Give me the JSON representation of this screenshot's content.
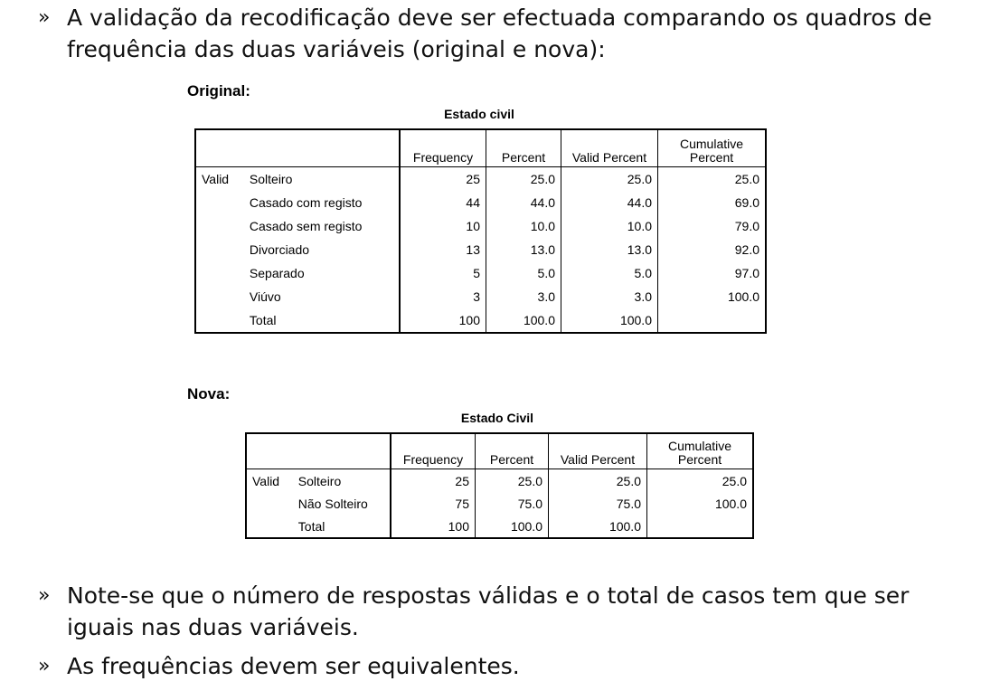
{
  "bullets": [
    {
      "mark": "»",
      "lines": [
        "A validação da recodificação deve ser efectuada comparando os quadros de",
        "frequência das duas variáveis (original e nova):"
      ]
    },
    {
      "mark": "»",
      "lines": [
        "Note-se que o número de respostas válidas e o total de casos tem que ser",
        "iguais nas duas variáveis."
      ]
    },
    {
      "mark": "»",
      "lines": [
        "As frequências devem ser equivalentes."
      ]
    }
  ],
  "original": {
    "label": "Original:",
    "title": "Estado civil",
    "headers": [
      "Frequency",
      "Percent",
      "Valid Percent",
      "Cumulative Percent"
    ],
    "header_cumulative_lines": [
      "Cumulative",
      "Percent"
    ],
    "group": "Valid",
    "rows": [
      {
        "label": "Solteiro",
        "frequency": "25",
        "percent": "25.0",
        "valid_percent": "25.0",
        "cumulative": "25.0"
      },
      {
        "label": "Casado com registo",
        "frequency": "44",
        "percent": "44.0",
        "valid_percent": "44.0",
        "cumulative": "69.0"
      },
      {
        "label": "Casado sem registo",
        "frequency": "10",
        "percent": "10.0",
        "valid_percent": "10.0",
        "cumulative": "79.0"
      },
      {
        "label": "Divorciado",
        "frequency": "13",
        "percent": "13.0",
        "valid_percent": "13.0",
        "cumulative": "92.0"
      },
      {
        "label": "Separado",
        "frequency": "5",
        "percent": "5.0",
        "valid_percent": "5.0",
        "cumulative": "97.0"
      },
      {
        "label": "Viúvo",
        "frequency": "3",
        "percent": "3.0",
        "valid_percent": "3.0",
        "cumulative": "100.0"
      },
      {
        "label": "Total",
        "frequency": "100",
        "percent": "100.0",
        "valid_percent": "100.0",
        "cumulative": ""
      }
    ]
  },
  "nova": {
    "label": "Nova:",
    "title": "Estado Civil",
    "headers": [
      "Frequency",
      "Percent",
      "Valid Percent",
      "Cumulative Percent"
    ],
    "header_cumulative_lines": [
      "Cumulative",
      "Percent"
    ],
    "group": "Valid",
    "rows": [
      {
        "label": "Solteiro",
        "frequency": "25",
        "percent": "25.0",
        "valid_percent": "25.0",
        "cumulative": "25.0"
      },
      {
        "label": "Não Solteiro",
        "frequency": "75",
        "percent": "75.0",
        "valid_percent": "75.0",
        "cumulative": "100.0"
      },
      {
        "label": "Total",
        "frequency": "100",
        "percent": "100.0",
        "valid_percent": "100.0",
        "cumulative": ""
      }
    ]
  }
}
